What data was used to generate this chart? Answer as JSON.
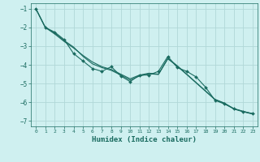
{
  "xlabel": "Humidex (Indice chaleur)",
  "bg_color": "#cff0f0",
  "grid_color": "#b0d8d8",
  "line_color": "#1a6b60",
  "xlim": [
    -0.5,
    23.5
  ],
  "ylim": [
    -7.3,
    -0.7
  ],
  "yticks": [
    -7,
    -6,
    -5,
    -4,
    -3,
    -2,
    -1
  ],
  "xticks": [
    0,
    1,
    2,
    3,
    4,
    5,
    6,
    7,
    8,
    9,
    10,
    11,
    12,
    13,
    14,
    15,
    16,
    17,
    18,
    19,
    20,
    21,
    22,
    23
  ],
  "line1_x": [
    0,
    1,
    2,
    3,
    4,
    5,
    6,
    7,
    8,
    9,
    10,
    11,
    12,
    13,
    14,
    15,
    16,
    17,
    18,
    19,
    20,
    21,
    22,
    23
  ],
  "line1_y": [
    -1.0,
    -2.0,
    -2.35,
    -2.75,
    -3.1,
    -3.5,
    -3.85,
    -4.1,
    -4.25,
    -4.5,
    -4.75,
    -4.55,
    -4.45,
    -4.5,
    -3.65,
    -4.05,
    -4.5,
    -4.95,
    -5.4,
    -5.85,
    -6.05,
    -6.35,
    -6.5,
    -6.62
  ],
  "line2_x": [
    0,
    1,
    2,
    3,
    4,
    5,
    6,
    7,
    8,
    9,
    10,
    11,
    12,
    13,
    14,
    15,
    16,
    17,
    18,
    19,
    20,
    21,
    22,
    23
  ],
  "line2_y": [
    -1.0,
    -2.0,
    -2.25,
    -2.65,
    -3.4,
    -3.8,
    -4.2,
    -4.35,
    -4.1,
    -4.6,
    -4.9,
    -4.55,
    -4.55,
    -4.35,
    -3.55,
    -4.15,
    -4.35,
    -4.65,
    -5.2,
    -5.9,
    -6.1,
    -6.35,
    -6.5,
    -6.62
  ],
  "line3_x": [
    0,
    1,
    2,
    3,
    4,
    5,
    6,
    7,
    8,
    9,
    10,
    11,
    12,
    13,
    14,
    15,
    16,
    17,
    18,
    19,
    20,
    21,
    22,
    23
  ],
  "line3_y": [
    -1.0,
    -2.0,
    -2.3,
    -2.7,
    -3.05,
    -3.55,
    -3.95,
    -4.15,
    -4.3,
    -4.55,
    -4.82,
    -4.6,
    -4.48,
    -4.52,
    -3.68,
    -4.08,
    -4.52,
    -4.97,
    -5.42,
    -5.87,
    -6.07,
    -6.37,
    -6.52,
    -6.64
  ]
}
